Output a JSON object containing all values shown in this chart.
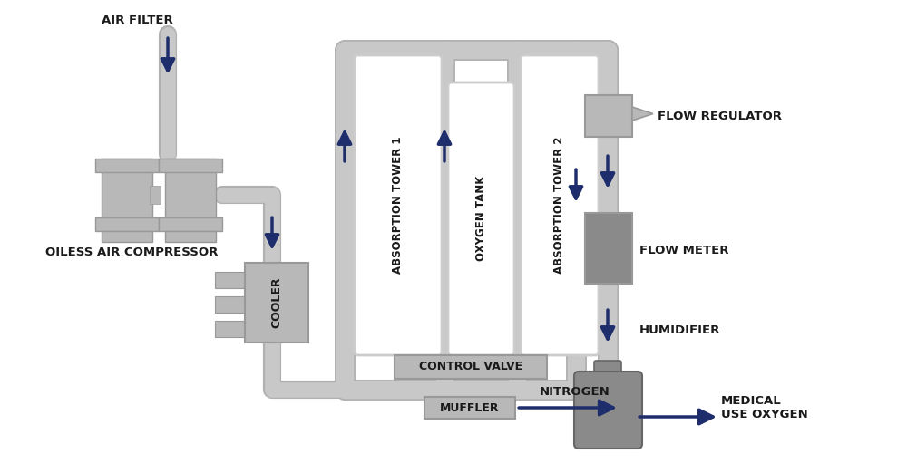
{
  "bg_color": "#ffffff",
  "pipe_color": "#c8c8c8",
  "pipe_edge": "#b0b0b0",
  "box_gray": "#b8b8b8",
  "box_dark": "#8a8a8a",
  "box_edge": "#999999",
  "tower_fill": "#ffffff",
  "tower_edge": "#cccccc",
  "arrow_color": "#1e2d6b",
  "text_color": "#1a1a1a",
  "pipe_lw": 16,
  "components": {
    "air_filter": "AIR FILTER",
    "compressor": "OILESS AIR COMPRESSOR",
    "cooler": "COOLER",
    "tower1": "ABSORPTION TOWER 1",
    "tower2": "ABSORPTION TOWER 2",
    "oxy_tank": "OXYGEN TANK",
    "flow_reg": "FLOW REGULATOR",
    "flow_meter": "FLOW METER",
    "humidifier": "HUMIDIFIER",
    "ctrl_valve": "CONTROL VALVE",
    "nitrogen": "NITROGEN",
    "muffler": "MUFFLER",
    "medical": "MEDICAL\nUSE OXYGEN"
  }
}
